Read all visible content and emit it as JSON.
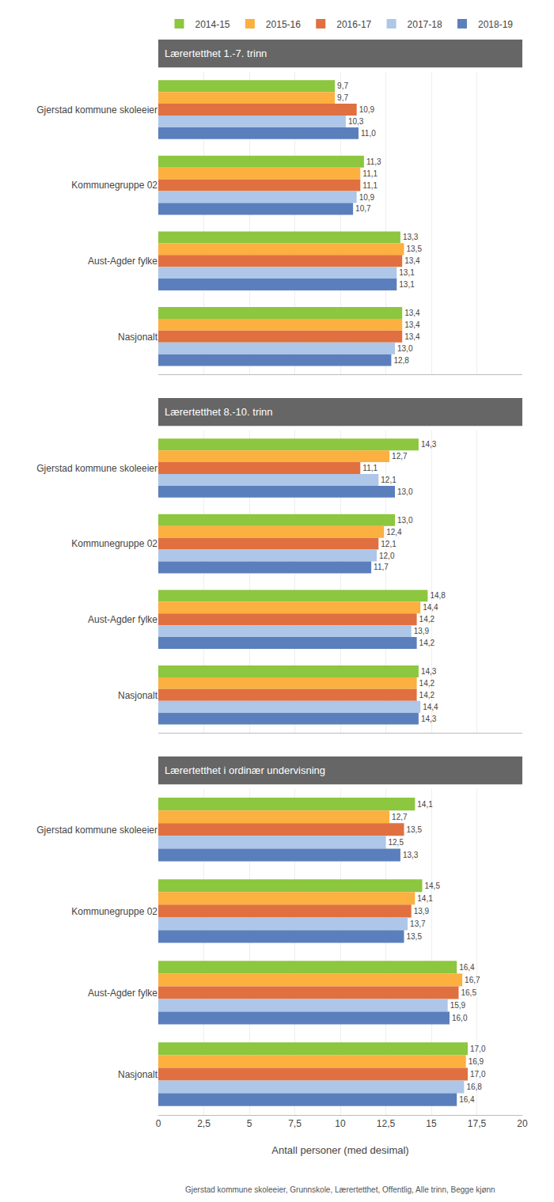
{
  "chart_data": [
    {
      "type": "bar",
      "title": "Lærertetthet 1.-7. trinn",
      "orientation": "horizontal",
      "categories": [
        "Gjerstad kommune skoleeier",
        "Kommunegruppe 02",
        "Aust-Agder fylke",
        "Nasjonalt"
      ],
      "series": [
        {
          "name": "2014-15",
          "color": "#8dc63f",
          "values": [
            9.7,
            11.3,
            13.3,
            13.4
          ],
          "value_labels": [
            "9,7",
            "11,3",
            "13,3",
            "13,4"
          ]
        },
        {
          "name": "2015-16",
          "color": "#fbb040",
          "values": [
            9.7,
            11.1,
            13.5,
            13.4
          ],
          "value_labels": [
            "9,7",
            "11,1",
            "13,5",
            "13,4"
          ]
        },
        {
          "name": "2016-17",
          "color": "#e07040",
          "values": [
            10.9,
            11.1,
            13.4,
            13.4
          ],
          "value_labels": [
            "10,9",
            "11,1",
            "13,4",
            "13,4"
          ]
        },
        {
          "name": "2017-18",
          "color": "#aec6e8",
          "values": [
            10.3,
            10.9,
            13.1,
            13.0
          ],
          "value_labels": [
            "10,3",
            "10,9",
            "13,1",
            "13,0"
          ]
        },
        {
          "name": "2018-19",
          "color": "#5b7fbc",
          "values": [
            11.0,
            10.7,
            13.1,
            12.8
          ],
          "value_labels": [
            "11,0",
            "10,7",
            "13,1",
            "12,8"
          ]
        }
      ],
      "xlim": [
        0,
        20
      ],
      "xticks": [
        0,
        {
          "value": 2.5,
          "label": "2,5"
        },
        5,
        {
          "value": 7.5,
          "label": "7,5"
        },
        10,
        {
          "value": 12.5,
          "label": "12,5"
        },
        15,
        {
          "value": 17.5,
          "label": "17,5"
        },
        20
      ],
      "grid": true,
      "data_labels": true,
      "legend": "top",
      "tick_labels": "y"
    },
    {
      "type": "bar",
      "title": "Lærertetthet 8.-10. trinn",
      "orientation": "horizontal",
      "categories": [
        "Gjerstad kommune skoleeier",
        "Kommunegruppe 02",
        "Aust-Agder fylke",
        "Nasjonalt"
      ],
      "series": [
        {
          "name": "2014-15",
          "color": "#8dc63f",
          "values": [
            14.3,
            13.0,
            14.8,
            14.3
          ],
          "value_labels": [
            "14,3",
            "13,0",
            "14,8",
            "14,3"
          ]
        },
        {
          "name": "2015-16",
          "color": "#fbb040",
          "values": [
            12.7,
            12.4,
            14.4,
            14.2
          ],
          "value_labels": [
            "12,7",
            "12,4",
            "14,4",
            "14,2"
          ]
        },
        {
          "name": "2016-17",
          "color": "#e07040",
          "values": [
            11.1,
            12.1,
            14.2,
            14.2
          ],
          "value_labels": [
            "11,1",
            "12,1",
            "14,2",
            "14,2"
          ]
        },
        {
          "name": "2017-18",
          "color": "#aec6e8",
          "values": [
            12.1,
            12.0,
            13.9,
            14.4
          ],
          "value_labels": [
            "12,1",
            "12,0",
            "13,9",
            "14,4"
          ]
        },
        {
          "name": "2018-19",
          "color": "#5b7fbc",
          "values": [
            13.0,
            11.7,
            14.2,
            14.3
          ],
          "value_labels": [
            "13,0",
            "11,7",
            "14,2",
            "14,3"
          ]
        }
      ],
      "xlim": [
        0,
        20
      ],
      "xticks": [
        0,
        {
          "value": 2.5,
          "label": "2,5"
        },
        5,
        {
          "value": 7.5,
          "label": "7,5"
        },
        10,
        {
          "value": 12.5,
          "label": "12,5"
        },
        15,
        {
          "value": 17.5,
          "label": "17,5"
        },
        20
      ],
      "grid": true,
      "data_labels": true,
      "tick_labels": "y"
    },
    {
      "type": "bar",
      "title": "Lærertetthet i ordinær undervisning",
      "orientation": "horizontal",
      "categories": [
        "Gjerstad kommune skoleeier",
        "Kommunegruppe 02",
        "Aust-Agder fylke",
        "Nasjonalt"
      ],
      "series": [
        {
          "name": "2014-15",
          "color": "#8dc63f",
          "values": [
            14.1,
            14.5,
            16.4,
            17.0
          ],
          "value_labels": [
            "14,1",
            "14,5",
            "16,4",
            "17,0"
          ]
        },
        {
          "name": "2015-16",
          "color": "#fbb040",
          "values": [
            12.7,
            14.1,
            16.7,
            16.9
          ],
          "value_labels": [
            "12,7",
            "14,1",
            "16,7",
            "16,9"
          ]
        },
        {
          "name": "2016-17",
          "color": "#e07040",
          "values": [
            13.5,
            13.9,
            16.5,
            17.0
          ],
          "value_labels": [
            "13,5",
            "13,9",
            "16,5",
            "17,0"
          ]
        },
        {
          "name": "2017-18",
          "color": "#aec6e8",
          "values": [
            12.5,
            13.7,
            15.9,
            16.8
          ],
          "value_labels": [
            "12,5",
            "13,7",
            "15,9",
            "16,8"
          ]
        },
        {
          "name": "2018-19",
          "color": "#5b7fbc",
          "values": [
            13.3,
            13.5,
            16.0,
            16.4
          ],
          "value_labels": [
            "13,3",
            "13,5",
            "16,0",
            "16,4"
          ]
        }
      ],
      "xlim": [
        0,
        20
      ],
      "xticks": [
        0,
        {
          "value": 2.5,
          "label": "2,5"
        },
        5,
        {
          "value": 7.5,
          "label": "7,5"
        },
        10,
        {
          "value": 12.5,
          "label": "12,5"
        },
        15,
        {
          "value": 17.5,
          "label": "17,5"
        },
        20
      ],
      "xlabel": "Antall personer (med desimal)",
      "annotations": [
        "Gjerstad kommune skoleeier, Grunnskole, Lærertetthet, Offentlig, Alle trinn, Begge kjønn"
      ],
      "grid": true,
      "data_labels": true
    }
  ]
}
